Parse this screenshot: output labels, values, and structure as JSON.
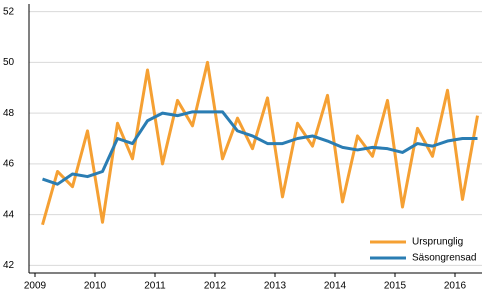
{
  "chart_data": {
    "type": "line",
    "x": [
      2009.125,
      2009.375,
      2009.625,
      2009.875,
      2010.125,
      2010.375,
      2010.625,
      2010.875,
      2011.125,
      2011.375,
      2011.625,
      2011.875,
      2012.125,
      2012.375,
      2012.625,
      2012.875,
      2013.125,
      2013.375,
      2013.625,
      2013.875,
      2014.125,
      2014.375,
      2014.625,
      2014.875,
      2015.125,
      2015.375,
      2015.625,
      2015.875,
      2016.125,
      2016.375
    ],
    "series": [
      {
        "name": "Ursprunglig",
        "color": "#f5a033",
        "values": [
          43.6,
          45.7,
          45.1,
          47.3,
          43.7,
          47.6,
          46.2,
          49.7,
          46.0,
          48.5,
          47.5,
          50.0,
          46.2,
          47.8,
          46.6,
          48.6,
          44.7,
          47.6,
          46.7,
          48.7,
          44.5,
          47.1,
          46.3,
          48.5,
          44.3,
          47.4,
          46.3,
          48.9,
          44.6,
          47.9
        ]
      },
      {
        "name": "Säsongrensad",
        "color": "#2a7db3",
        "values": [
          45.4,
          45.2,
          45.6,
          45.5,
          45.7,
          47.0,
          46.8,
          47.7,
          48.0,
          47.9,
          48.05,
          48.05,
          48.05,
          47.3,
          47.1,
          46.8,
          46.8,
          47.0,
          47.1,
          46.9,
          46.65,
          46.55,
          46.65,
          46.6,
          46.45,
          46.8,
          46.7,
          46.9,
          47.0,
          47.0
        ]
      }
    ],
    "xlim": [
      2008.9,
      2016.45
    ],
    "xticks": [
      2009,
      2010,
      2011,
      2012,
      2013,
      2014,
      2015,
      2016
    ],
    "ylim": [
      41.7,
      52.3
    ],
    "yticks": [
      42,
      44,
      46,
      48,
      50,
      52
    ],
    "grid": true,
    "legend": "lower right"
  }
}
